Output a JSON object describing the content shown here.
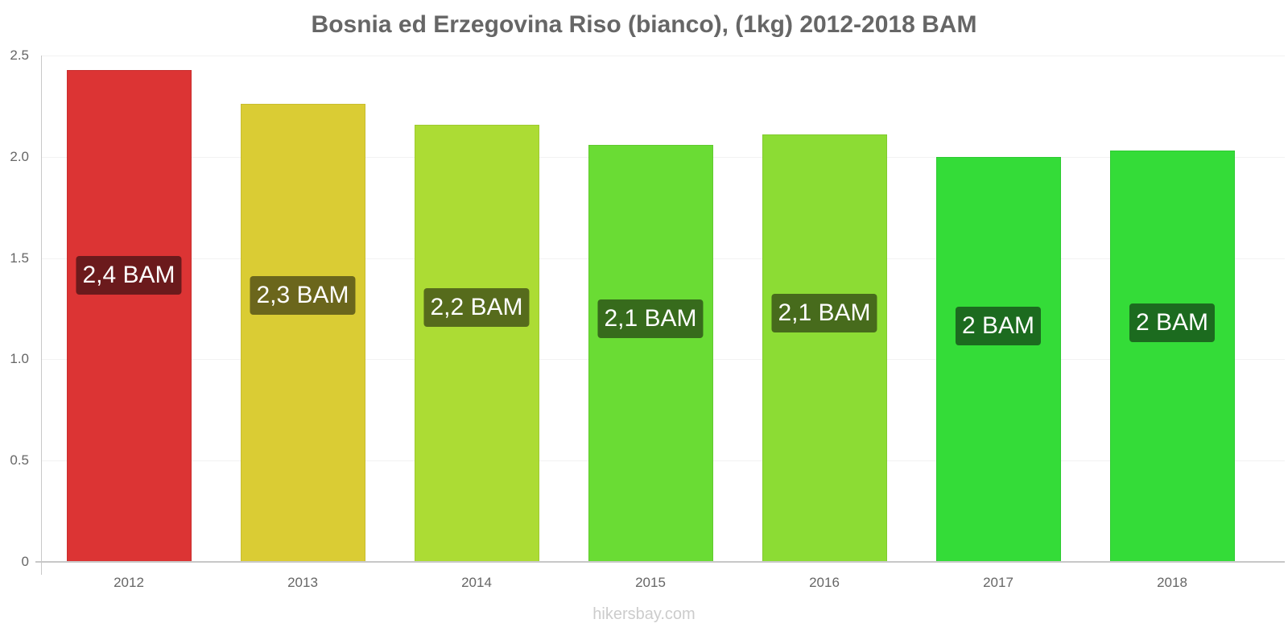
{
  "header": {
    "title": "Bosnia ed Erzegovina Riso (bianco), (1kg) 2012-2018 BAM"
  },
  "footer": {
    "source": "hikersbay.com"
  },
  "y_axis": {
    "ticks": [
      "0",
      "0.5",
      "1.0",
      "1.5",
      "2.0",
      "2.5"
    ]
  },
  "bars": [
    {
      "year": "2012",
      "value": 2.43,
      "label": "2,4 BAM",
      "color": "#dc3434",
      "label_bg": "#6b1a1c"
    },
    {
      "year": "2013",
      "value": 2.26,
      "label": "2,3 BAM",
      "color": "#dacc34",
      "label_bg": "#6b661c"
    },
    {
      "year": "2014",
      "value": 2.16,
      "label": "2,2 BAM",
      "color": "#acdc34",
      "label_bg": "#566b1c"
    },
    {
      "year": "2015",
      "value": 2.06,
      "label": "2,1 BAM",
      "color": "#6adc34",
      "label_bg": "#376b1c"
    },
    {
      "year": "2016",
      "value": 2.11,
      "label": "2,1 BAM",
      "color": "#8cdc34",
      "label_bg": "#476b1c"
    },
    {
      "year": "2017",
      "value": 2.0,
      "label": "2 BAM",
      "color": "#34dc38",
      "label_bg": "#1c6b1f"
    },
    {
      "year": "2018",
      "value": 2.03,
      "label": "2 BAM",
      "color": "#34dc38",
      "label_bg": "#1c6b1f"
    }
  ],
  "chart_data": {
    "type": "bar",
    "title": "Bosnia ed Erzegovina Riso (bianco), (1kg) 2012-2018 BAM",
    "categories": [
      "2012",
      "2013",
      "2014",
      "2015",
      "2016",
      "2017",
      "2018"
    ],
    "values": [
      2.43,
      2.26,
      2.16,
      2.06,
      2.11,
      2.0,
      2.03
    ],
    "data_labels": [
      "2,4 BAM",
      "2,3 BAM",
      "2,2 BAM",
      "2,1 BAM",
      "2,1 BAM",
      "2 BAM",
      "2 BAM"
    ],
    "xlabel": "",
    "ylabel": "",
    "ylim": [
      0,
      2.5
    ],
    "yticks": [
      0,
      0.5,
      1.0,
      1.5,
      2.0,
      2.5
    ],
    "grid": true,
    "legend": null,
    "bar_colors": [
      "#dc3434",
      "#dacc34",
      "#acdc34",
      "#6adc34",
      "#8cdc34",
      "#34dc38",
      "#34dc38"
    ],
    "source": "hikersbay.com"
  }
}
